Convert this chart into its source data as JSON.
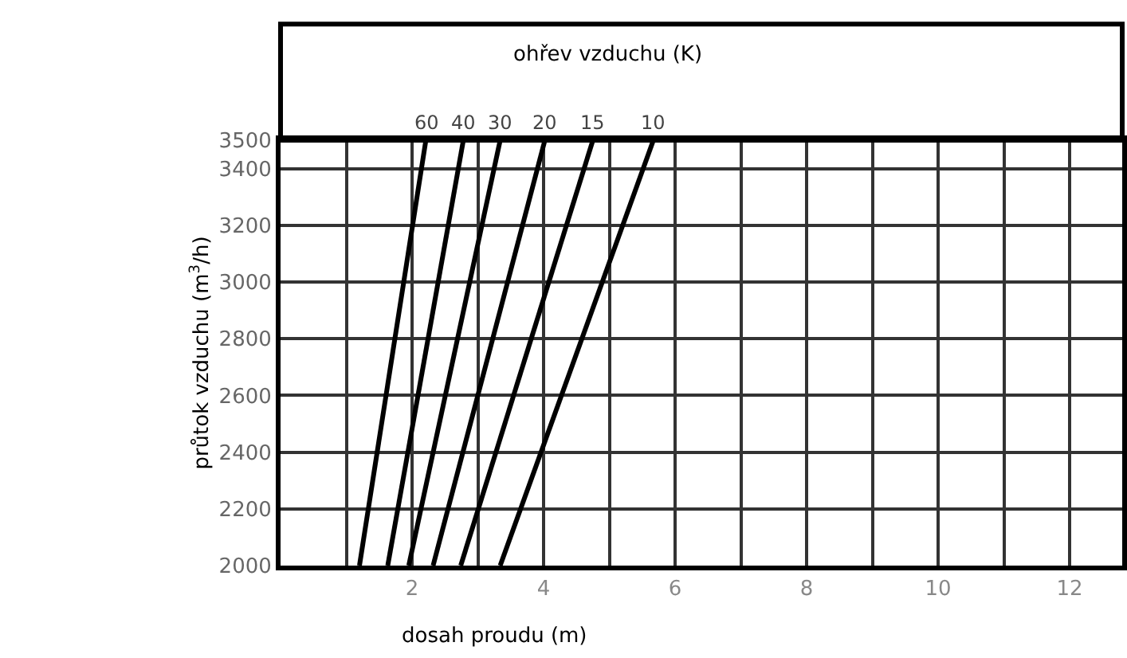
{
  "chart_data": {
    "type": "line",
    "xlabel": "dosah proudu (m)",
    "ylabel": "průtok vzduchu (m$^{3}$/h)",
    "annotations": [
      "ohřev vzduchu (K)"
    ],
    "series": [
      {
        "name": "60",
        "color": "#000000",
        "x": [
          1.2,
          2.21
        ],
        "values": [
          2000,
          3500
        ]
      },
      {
        "name": "40",
        "color": "#000000",
        "x": [
          1.63,
          2.78
        ],
        "values": [
          2000,
          3500
        ]
      },
      {
        "name": "30",
        "color": "#000000",
        "x": [
          1.95,
          3.34
        ],
        "values": [
          2000,
          3500
        ]
      },
      {
        "name": "20",
        "color": "#000000",
        "x": [
          2.32,
          4.02
        ],
        "values": [
          2000,
          3500
        ]
      },
      {
        "name": "15",
        "color": "#000000",
        "x": [
          2.74,
          4.75
        ],
        "values": [
          2000,
          3500
        ]
      },
      {
        "name": "10",
        "color": "#000000",
        "x": [
          3.34,
          5.67
        ],
        "values": [
          2000,
          3500
        ]
      }
    ],
    "xlim": [
      0,
      12.8
    ],
    "xticks": [
      {
        "value": 1,
        "label": null
      },
      2,
      {
        "value": 3,
        "label": null
      },
      4,
      {
        "value": 5,
        "label": null
      },
      6,
      {
        "value": 7,
        "label": null
      },
      8,
      {
        "value": 9,
        "label": null
      },
      10,
      {
        "value": 11,
        "label": null
      },
      12
    ],
    "ylim": [
      2000,
      3500
    ],
    "yticks": [
      2000,
      2200,
      2400,
      2600,
      2800,
      3000,
      3200,
      3400,
      3500
    ],
    "grid": true,
    "legend": false,
    "marker": "none",
    "line_style": "solid"
  }
}
